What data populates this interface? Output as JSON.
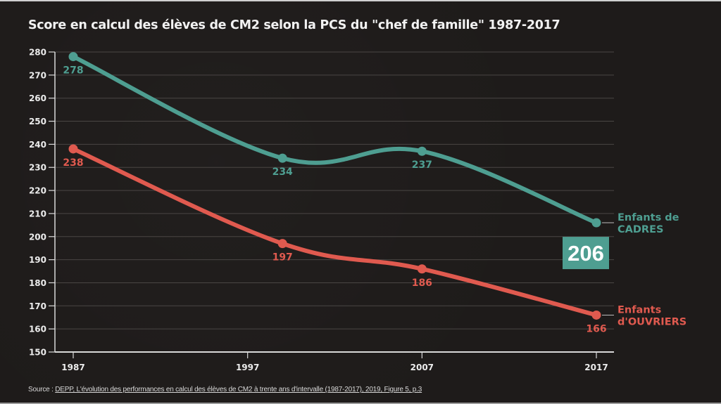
{
  "title": "Score en calcul des élèves de CM2 selon la PCS du \"chef de famille\" 1987-2017",
  "source": {
    "prefix": "Source : ",
    "link_text": "DEPP, L'évolution des performances en calcul des élèves de CM2 à trente ans d'intervalle (1987-2017), 2019, Figure 5, p.3"
  },
  "colors": {
    "cadres": "#4e9e91",
    "ouvriers": "#e05a4f",
    "axis": "#d9d9d9",
    "grid": "#4a4644",
    "background": "#1e1b1a"
  },
  "chart_data": {
    "type": "line",
    "title": "Score en calcul des élèves de CM2 selon la PCS du \"chef de famille\" 1987-2017",
    "xlabel": "",
    "ylabel": "",
    "xlim": [
      1987,
      2017
    ],
    "ylim": [
      150,
      280
    ],
    "x_ticks": [
      1987,
      1997,
      2007,
      2017
    ],
    "x_tick_labels": [
      "1987",
      "1997",
      "2007",
      "2017"
    ],
    "y_ticks": [
      150,
      160,
      170,
      180,
      190,
      200,
      210,
      220,
      230,
      240,
      250,
      260,
      270,
      280
    ],
    "y_tick_labels": [
      "150",
      "160",
      "170",
      "180",
      "190",
      "200",
      "210",
      "220",
      "230",
      "240",
      "250",
      "260",
      "270",
      "280"
    ],
    "grid": true,
    "legend": "right (inline labels at line ends)",
    "x": [
      1987,
      1999,
      2007,
      2017
    ],
    "series": [
      {
        "name": "Enfants de CADRES",
        "label_lines": [
          "Enfants de",
          "CADRES"
        ],
        "color": "#4e9e91",
        "values": [
          278,
          234,
          237,
          206
        ],
        "value_labels": [
          "278",
          "234",
          "237",
          ""
        ],
        "callout": "206"
      },
      {
        "name": "Enfants d'OUVRIERS",
        "label_lines": [
          "Enfants",
          "d'OUVRIERS"
        ],
        "color": "#e05a4f",
        "values": [
          238,
          197,
          186,
          166
        ],
        "value_labels": [
          "238",
          "197",
          "186",
          "166"
        ]
      }
    ]
  }
}
